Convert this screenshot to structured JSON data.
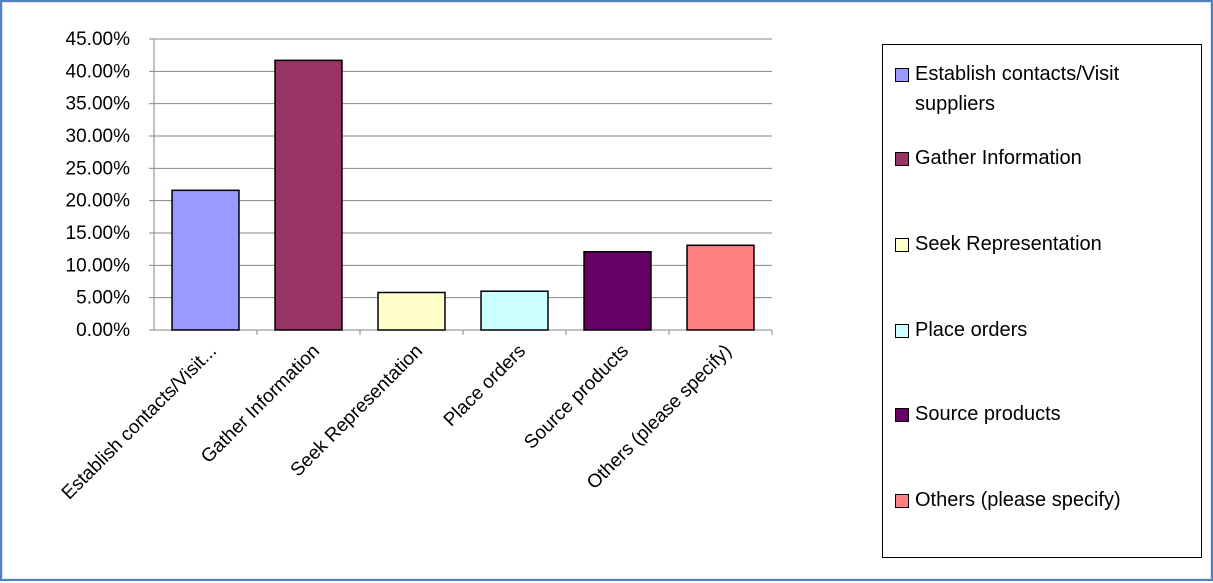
{
  "chart_data": {
    "type": "bar",
    "categories": [
      "Establish contacts/Visit...",
      "Gather Information",
      "Seek Representation",
      "Place orders",
      "Source products",
      "Others (please specify)"
    ],
    "values": [
      21.6,
      41.7,
      5.8,
      6.0,
      12.1,
      13.1
    ],
    "colors": [
      "#9999ff",
      "#993366",
      "#ffffcc",
      "#ccffff",
      "#660066",
      "#ff8080"
    ],
    "ylim": [
      0,
      45
    ],
    "yticks": [
      "0.00%",
      "5.00%",
      "10.00%",
      "15.00%",
      "20.00%",
      "25.00%",
      "30.00%",
      "35.00%",
      "40.00%",
      "45.00%"
    ],
    "gridlines": true,
    "legend_position": "right",
    "legend": [
      "Establish contacts/Visit suppliers",
      "Gather Information",
      "Seek Representation",
      "Place orders",
      "Source products",
      "Others (please specify)"
    ]
  }
}
